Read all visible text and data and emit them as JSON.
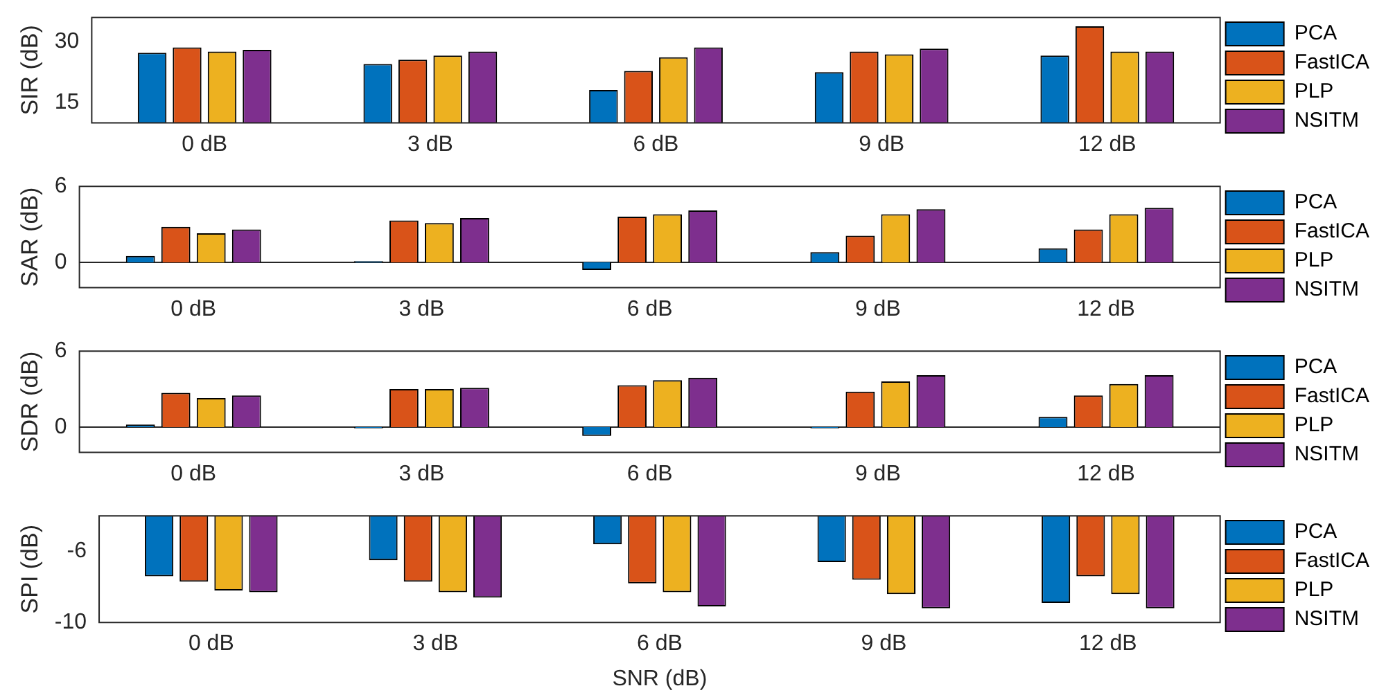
{
  "chart_data": [
    {
      "type": "bar",
      "ylabel": "SIR (dB)",
      "categories": [
        "0 dB",
        "3 dB",
        "6 dB",
        "9 dB",
        "12 dB"
      ],
      "ylim": [
        10,
        36
      ],
      "yticks": [
        15,
        30
      ],
      "legend": "right",
      "series": [
        {
          "name": "PCA",
          "color": "#0072bd",
          "values": [
            27.3,
            24.5,
            18.1,
            22.5,
            26.6
          ]
        },
        {
          "name": "FastICA",
          "color": "#d95319",
          "values": [
            28.6,
            25.6,
            22.8,
            27.6,
            33.8
          ]
        },
        {
          "name": "PLP",
          "color": "#edb120",
          "values": [
            27.6,
            26.6,
            26.2,
            26.9,
            27.6
          ]
        },
        {
          "name": "NSITM",
          "color": "#7e2f8e",
          "values": [
            28,
            27.6,
            28.6,
            28.3,
            27.6
          ]
        }
      ]
    },
    {
      "type": "bar",
      "ylabel": "SAR (dB)",
      "categories": [
        "0 dB",
        "3 dB",
        "6 dB",
        "9 dB",
        "12 dB"
      ],
      "ylim": [
        -2,
        6
      ],
      "yticks": [
        0,
        6
      ],
      "legend": "right",
      "series": [
        {
          "name": "PCA",
          "color": "#0072bd",
          "values": [
            0.5,
            0.1,
            -0.6,
            0.8,
            1.1
          ]
        },
        {
          "name": "FastICA",
          "color": "#d95319",
          "values": [
            2.8,
            3.3,
            3.6,
            2.1,
            2.6
          ]
        },
        {
          "name": "PLP",
          "color": "#edb120",
          "values": [
            2.3,
            3.1,
            3.8,
            3.8,
            3.8
          ]
        },
        {
          "name": "NSITM",
          "color": "#7e2f8e",
          "values": [
            2.6,
            3.5,
            4.1,
            4.2,
            4.3
          ]
        }
      ]
    },
    {
      "type": "bar",
      "ylabel": "SDR (dB)",
      "categories": [
        "0 dB",
        "3 dB",
        "6 dB",
        "9 dB",
        "12 dB"
      ],
      "ylim": [
        -2,
        6
      ],
      "yticks": [
        0,
        6
      ],
      "legend": "right",
      "series": [
        {
          "name": "PCA",
          "color": "#0072bd",
          "values": [
            0.2,
            -0.1,
            -0.7,
            -0.1,
            0.8
          ]
        },
        {
          "name": "FastICA",
          "color": "#d95319",
          "values": [
            2.7,
            3.0,
            3.3,
            2.8,
            2.5
          ]
        },
        {
          "name": "PLP",
          "color": "#edb120",
          "values": [
            2.3,
            3.0,
            3.7,
            3.6,
            3.4
          ]
        },
        {
          "name": "NSITM",
          "color": "#7e2f8e",
          "values": [
            2.5,
            3.1,
            3.9,
            4.1,
            4.1
          ]
        }
      ]
    },
    {
      "type": "bar",
      "ylabel": "SPI (dB)",
      "xlabel": "SNR (dB)",
      "categories": [
        "0 dB",
        "3 dB",
        "6 dB",
        "9 dB",
        "12 dB"
      ],
      "ylim": [
        -10,
        -4
      ],
      "yticks": [
        -6,
        -10
      ],
      "legend": "right",
      "series": [
        {
          "name": "PCA",
          "color": "#0072bd",
          "values": [
            -7.4,
            -6.5,
            -5.6,
            -6.6,
            -8.9
          ]
        },
        {
          "name": "FastICA",
          "color": "#d95319",
          "values": [
            -7.7,
            -7.7,
            -7.8,
            -7.6,
            -7.4
          ]
        },
        {
          "name": "PLP",
          "color": "#edb120",
          "values": [
            -8.2,
            -8.3,
            -8.3,
            -8.4,
            -8.4
          ]
        },
        {
          "name": "NSITM",
          "color": "#7e2f8e",
          "values": [
            -8.3,
            -8.6,
            -9.1,
            -9.2,
            -9.2
          ]
        }
      ]
    }
  ]
}
